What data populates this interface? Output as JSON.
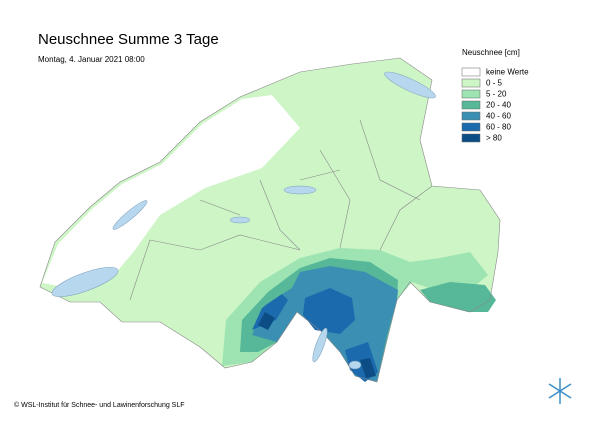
{
  "header": {
    "title": "Neuschnee Summe 3 Tage",
    "date": "Montag, 4. Januar 2021 08:00"
  },
  "legend": {
    "title": "Neuschnee [cm]",
    "items": [
      {
        "label": "keine Werte",
        "color": "#ffffff"
      },
      {
        "label": "0 - 5",
        "color": "#cdf5c6"
      },
      {
        "label": "5 - 20",
        "color": "#9de4b2"
      },
      {
        "label": "20 - 40",
        "color": "#56b898"
      },
      {
        "label": "40 - 60",
        "color": "#3a8fb2"
      },
      {
        "label": "60 - 80",
        "color": "#1c6aae"
      },
      {
        "label": "> 80",
        "color": "#0d4d86"
      }
    ]
  },
  "footer": {
    "copyright": "© WSL-Institut für Schnee- und Lawinenforschung SLF"
  }
}
